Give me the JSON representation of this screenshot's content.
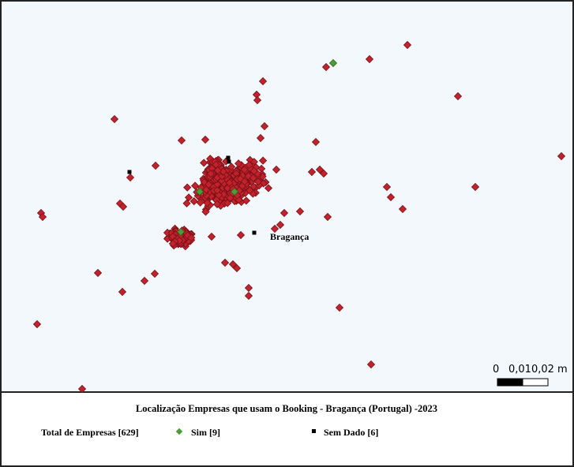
{
  "map": {
    "place_label": "Bragança",
    "scale": {
      "start": "0",
      "end": "0,010,02 m"
    },
    "legend": {
      "title": "Localização Empresas que usam o Booking - Bragança (Portugal) -2023",
      "total": "Total de Empresas [629]",
      "yes": "Sim [9]",
      "no_data": "Sem Dado [6]"
    }
  }
}
